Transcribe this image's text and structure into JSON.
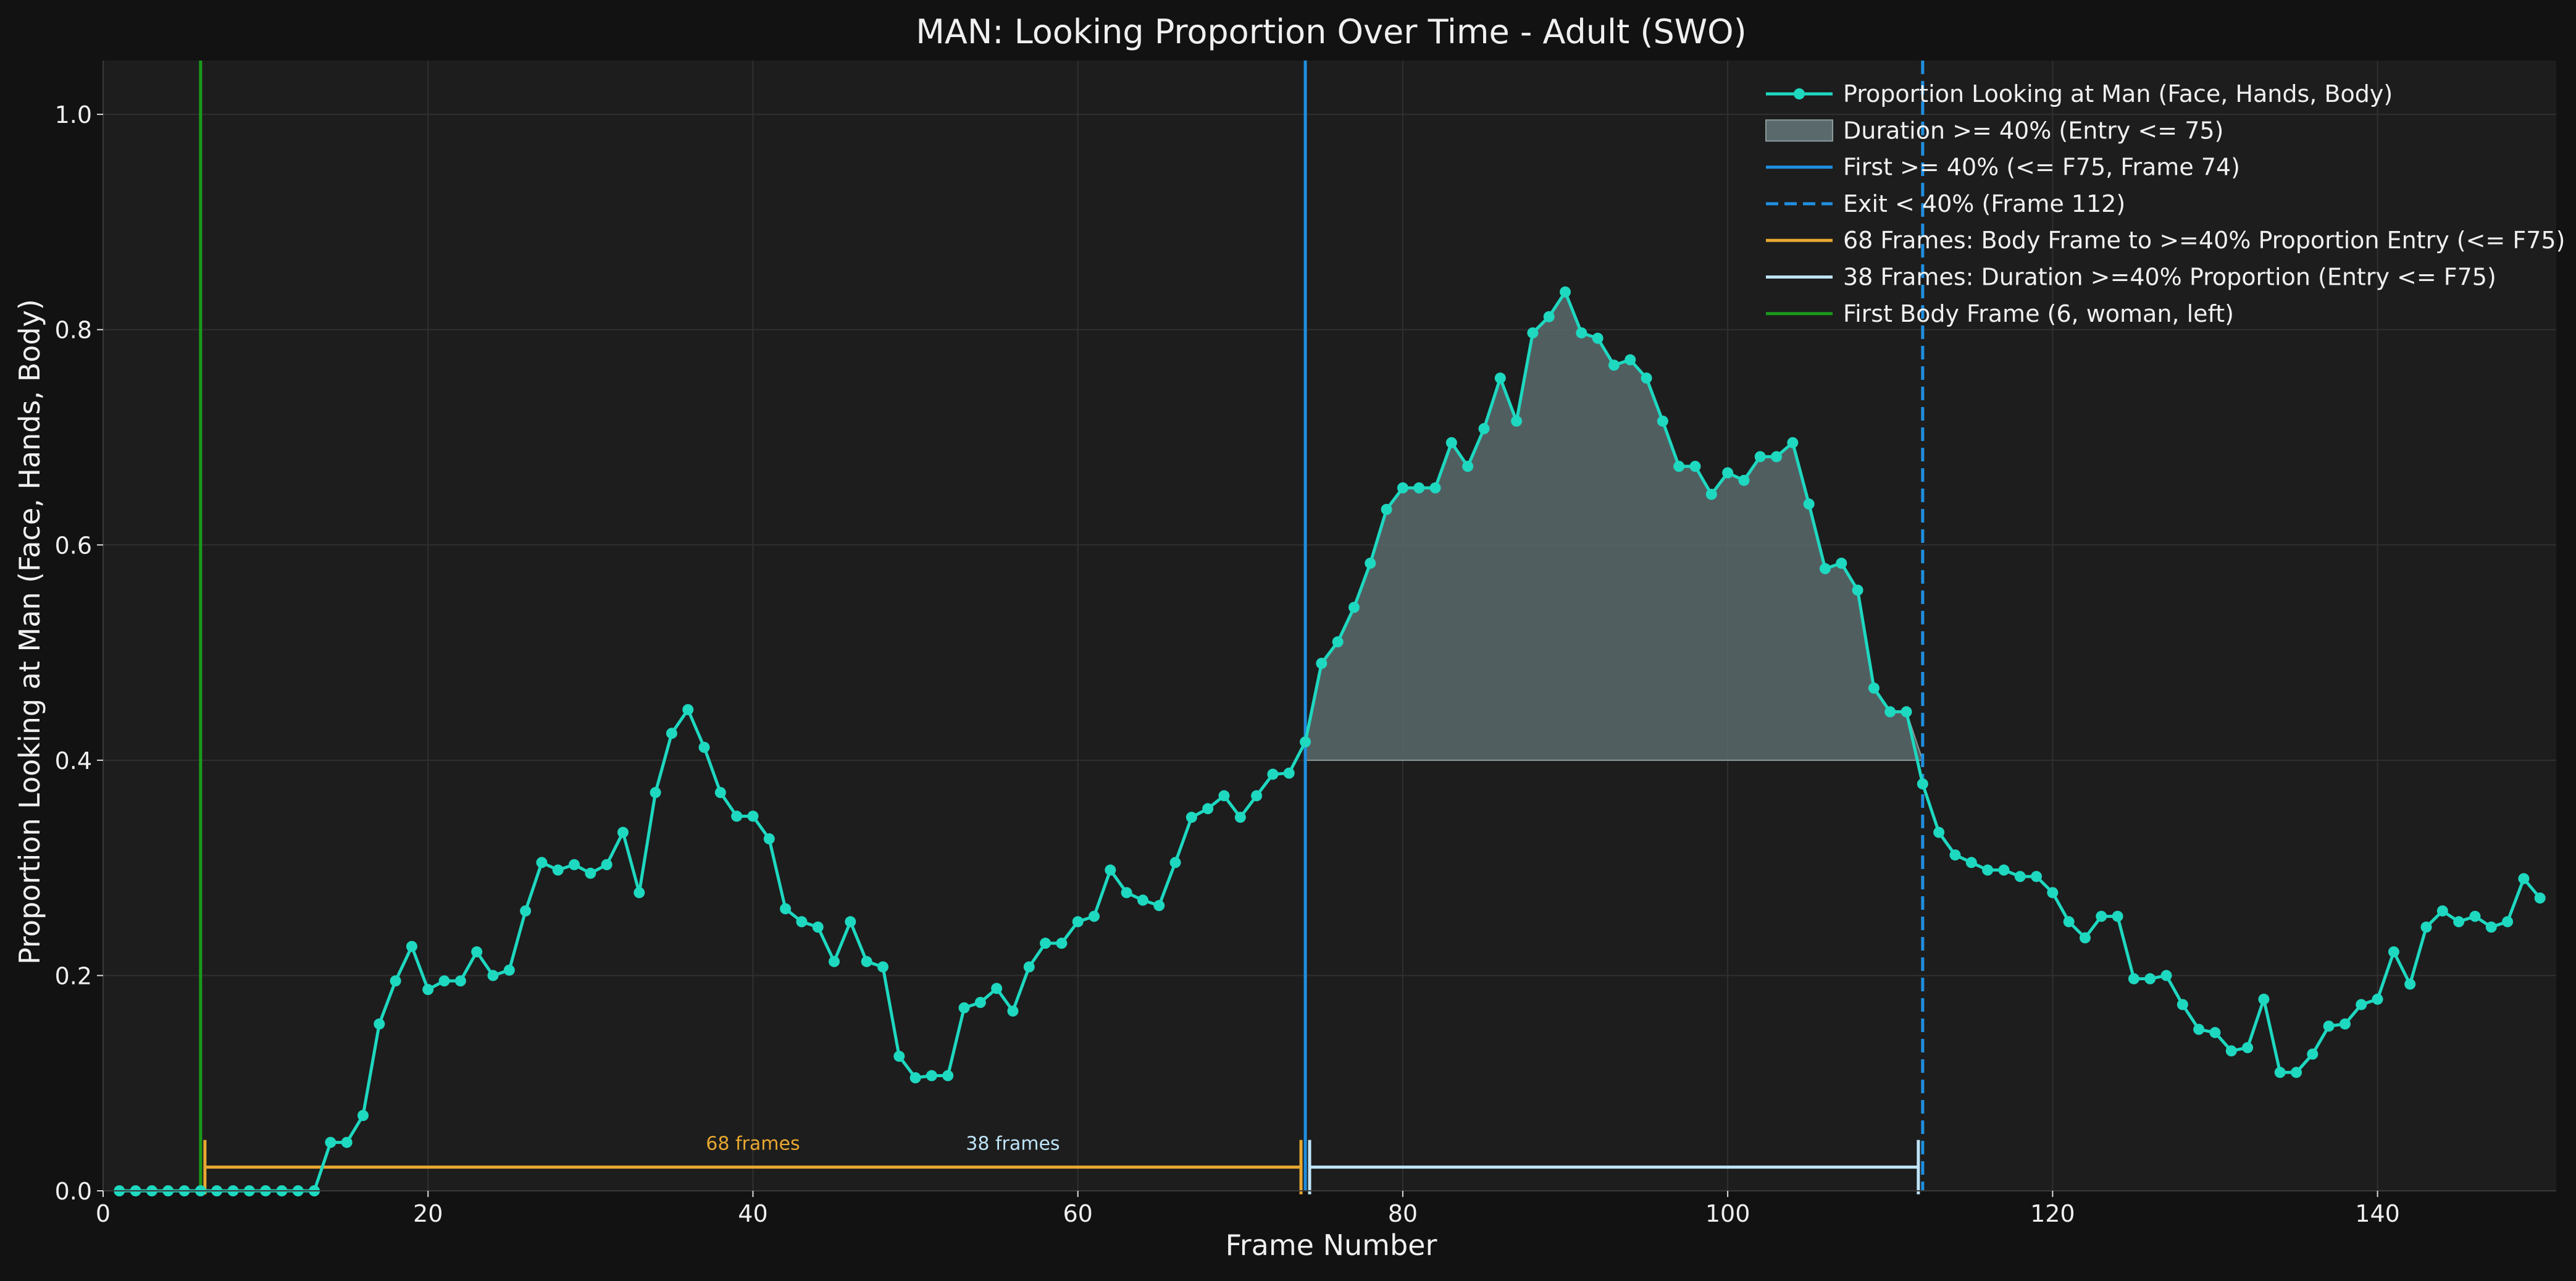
{
  "chart_data": {
    "type": "line",
    "title": "MAN: Looking Proportion Over Time - Adult (SWO)",
    "xlabel": "Frame Number",
    "ylabel": "Proportion Looking at Man (Face, Hands, Body)",
    "xlim": [
      0,
      151
    ],
    "ylim": [
      0,
      1.05
    ],
    "xticks": [
      0,
      20,
      40,
      60,
      80,
      100,
      120,
      140
    ],
    "yticks": [
      0.0,
      0.2,
      0.4,
      0.6,
      0.8,
      1.0
    ],
    "grid": true,
    "legend_position": "top-right",
    "series": [
      {
        "name": "Proportion Looking at Man (Face, Hands, Body)",
        "color": "#1ed8c0",
        "x": [
          1,
          2,
          3,
          4,
          5,
          6,
          7,
          8,
          9,
          10,
          11,
          12,
          13,
          14,
          15,
          16,
          17,
          18,
          19,
          20,
          21,
          22,
          23,
          24,
          25,
          26,
          27,
          28,
          29,
          30,
          31,
          32,
          33,
          34,
          35,
          36,
          37,
          38,
          39,
          40,
          41,
          42,
          43,
          44,
          45,
          46,
          47,
          48,
          49,
          50,
          51,
          52,
          53,
          54,
          55,
          56,
          57,
          58,
          59,
          60,
          61,
          62,
          63,
          64,
          65,
          66,
          67,
          68,
          69,
          70,
          71,
          72,
          73,
          74,
          75,
          76,
          77,
          78,
          79,
          80,
          81,
          82,
          83,
          84,
          85,
          86,
          87,
          88,
          89,
          90,
          91,
          92,
          93,
          94,
          95,
          96,
          97,
          98,
          99,
          100,
          101,
          102,
          103,
          104,
          105,
          106,
          107,
          108,
          109,
          110,
          111,
          112,
          113,
          114,
          115,
          116,
          117,
          118,
          119,
          120,
          121,
          122,
          123,
          124,
          125,
          126,
          127,
          128,
          129,
          130,
          131,
          132,
          133,
          134,
          135,
          136,
          137,
          138,
          139,
          140,
          141,
          142,
          143,
          144,
          145,
          146,
          147,
          148,
          149,
          150
        ],
        "y": [
          0.0,
          0.0,
          0.0,
          0.0,
          0.0,
          0.0,
          0.0,
          0.0,
          0.0,
          0.0,
          0.0,
          0.0,
          0.0,
          0.045,
          0.045,
          0.07,
          0.155,
          0.195,
          0.227,
          0.187,
          0.195,
          0.195,
          0.222,
          0.2,
          0.205,
          0.26,
          0.305,
          0.298,
          0.303,
          0.295,
          0.303,
          0.333,
          0.277,
          0.37,
          0.425,
          0.447,
          0.412,
          0.37,
          0.348,
          0.348,
          0.327,
          0.262,
          0.25,
          0.245,
          0.213,
          0.25,
          0.213,
          0.208,
          0.125,
          0.105,
          0.107,
          0.107,
          0.17,
          0.175,
          0.188,
          0.167,
          0.208,
          0.23,
          0.23,
          0.25,
          0.255,
          0.298,
          0.277,
          0.27,
          0.265,
          0.305,
          0.347,
          0.355,
          0.367,
          0.347,
          0.367,
          0.387,
          0.388,
          0.417,
          0.49,
          0.51,
          0.542,
          0.583,
          0.633,
          0.653,
          0.653,
          0.653,
          0.695,
          0.673,
          0.708,
          0.755,
          0.715,
          0.797,
          0.812,
          0.835,
          0.797,
          0.792,
          0.767,
          0.772,
          0.755,
          0.715,
          0.673,
          0.673,
          0.647,
          0.667,
          0.66,
          0.682,
          0.682,
          0.695,
          0.638,
          0.578,
          0.583,
          0.558,
          0.467,
          0.445,
          0.445,
          0.378,
          0.333,
          0.312,
          0.305,
          0.298,
          0.298,
          0.292,
          0.292,
          0.277,
          0.25,
          0.235,
          0.255,
          0.255,
          0.197,
          0.197,
          0.2,
          0.173,
          0.15,
          0.147,
          0.13,
          0.133,
          0.178,
          0.11,
          0.11,
          0.127,
          0.153,
          0.155,
          0.173,
          0.178,
          0.222,
          0.192,
          0.245,
          0.26,
          0.25,
          0.255,
          0.245,
          0.25,
          0.29,
          0.272
        ]
      }
    ],
    "fill_region": {
      "name": "Duration >= 40% (Entry <= 75)",
      "x_start": 74,
      "x_end": 112,
      "threshold": 0.4,
      "color": "#5a6a6c"
    },
    "vlines": [
      {
        "name": "First >= 40% (<= F75, Frame 74)",
        "x": 74,
        "color": "#1f8fe0",
        "style": "solid"
      },
      {
        "name": "Exit < 40% (Frame 112)",
        "x": 112,
        "color": "#1f8fe0",
        "style": "dashed"
      },
      {
        "name": "First Body Frame (6, woman, left)",
        "x": 6,
        "color": "#1a9a1a",
        "style": "solid"
      }
    ],
    "brackets": [
      {
        "name": "68 Frames: Body Frame to >=40% Proportion Entry (<= F75)",
        "x_start": 6,
        "x_end": 74,
        "label": "68 frames",
        "color": "#e8a830"
      },
      {
        "name": "38 Frames: Duration >=40% Proportion (Entry <= F75)",
        "x_start": 74,
        "x_end": 112,
        "label": "38 frames",
        "color": "#bfe4f8"
      }
    ]
  }
}
